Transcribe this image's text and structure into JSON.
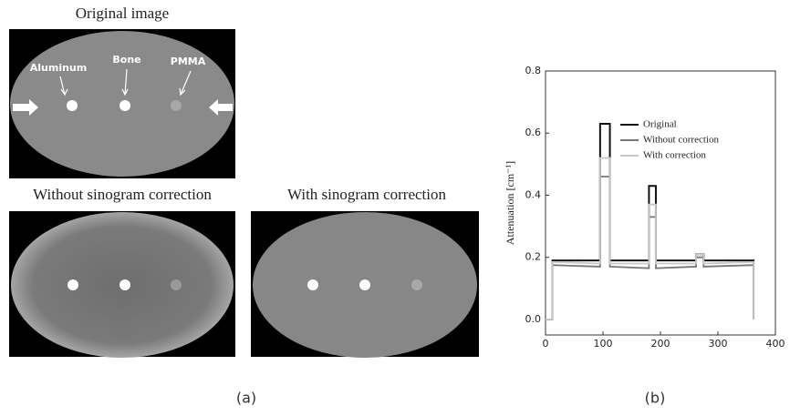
{
  "images": [
    {
      "title": "Original image",
      "labels": [
        "Aluminum",
        "Bone",
        "PMMA"
      ]
    },
    {
      "title": "Without sinogram correction"
    },
    {
      "title": "With sinogram correction"
    }
  ],
  "panel_labels": [
    "(a)",
    "(b)"
  ],
  "chart_data": {
    "type": "line",
    "ylabel": "Attenuation [cm⁻¹]",
    "x": [
      0,
      12,
      12,
      95,
      95,
      112,
      112,
      180,
      180,
      192,
      192,
      262,
      262,
      275,
      275,
      362,
      362
    ],
    "series": [
      {
        "name": "Original",
        "color": "#111111",
        "values": [
          0,
          0,
          0.19,
          0.19,
          0.63,
          0.63,
          0.19,
          0.19,
          0.43,
          0.43,
          0.19,
          0.19,
          0.21,
          0.21,
          0.19,
          0.19,
          0
        ]
      },
      {
        "name": "Without correction",
        "color": "#777777",
        "values": [
          0,
          0,
          0.175,
          0.17,
          0.46,
          0.46,
          0.17,
          0.165,
          0.33,
          0.33,
          0.165,
          0.17,
          0.2,
          0.2,
          0.17,
          0.175,
          0
        ]
      },
      {
        "name": "With correction",
        "color": "#c8c8c8",
        "values": [
          0,
          0,
          0.185,
          0.18,
          0.52,
          0.52,
          0.18,
          0.18,
          0.37,
          0.37,
          0.18,
          0.18,
          0.21,
          0.21,
          0.18,
          0.185,
          0
        ]
      }
    ],
    "xlim": [
      0,
      400
    ],
    "xticks": [
      0,
      100,
      200,
      300,
      400
    ],
    "ylim": [
      -0.05,
      0.8
    ],
    "yticks": [
      {
        "value": 0,
        "label": "0.0"
      },
      0.2,
      0.4,
      0.6,
      0.8
    ],
    "grid": false
  }
}
